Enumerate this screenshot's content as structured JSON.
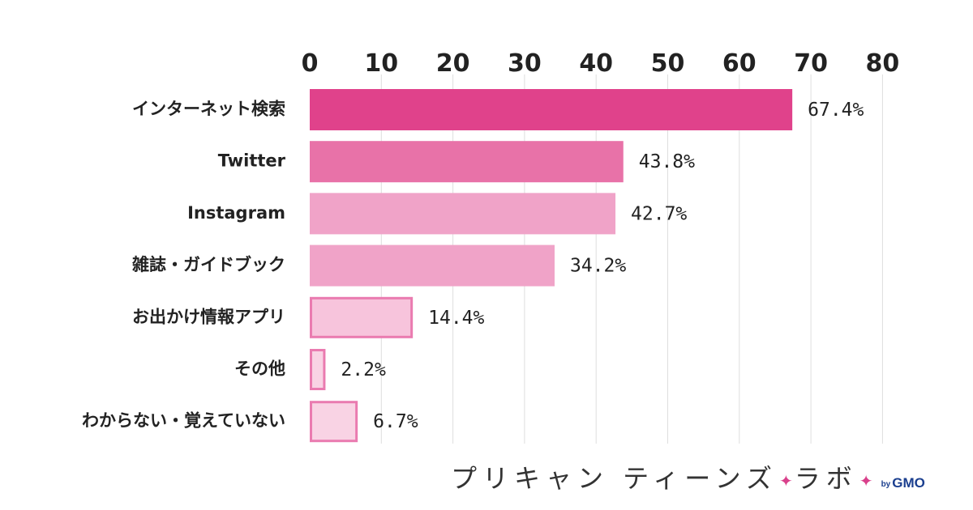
{
  "chart_data": {
    "type": "bar",
    "orientation": "horizontal",
    "categories": [
      "インターネット検索",
      "Twitter",
      "Instagram",
      "雑誌・ガイドブック",
      "お出かけ情報アプリ",
      "その他",
      "わからない・覚えていない"
    ],
    "values": [
      67.4,
      43.8,
      42.7,
      34.2,
      14.4,
      2.2,
      6.7
    ],
    "value_labels": [
      "67.4%",
      "43.8%",
      "42.7%",
      "34.2%",
      "14.4%",
      "2.2%",
      "6.7%"
    ],
    "xlim": [
      0,
      80
    ],
    "ticks": [
      0,
      10,
      20,
      30,
      40,
      50,
      60,
      70,
      80
    ],
    "tick_labels": [
      "0",
      "10",
      "20",
      "30",
      "40",
      "50",
      "60",
      "70",
      "80"
    ],
    "axis_position": "top",
    "grid": true,
    "bar_colors": [
      "#e0428b",
      "#e872a8",
      "#f0a3c8",
      "#f0a3c8",
      "#f7c4dc",
      "#f9d3e4",
      "#f9d3e4"
    ],
    "bar_outline": [
      false,
      false,
      false,
      false,
      true,
      true,
      true
    ],
    "outline_color": "#ea7bb0"
  },
  "brand": {
    "name": "プリキャン ティーンズ",
    "lab": "ラボ",
    "sparkle": "✦",
    "by": "by",
    "company": "GMO"
  }
}
